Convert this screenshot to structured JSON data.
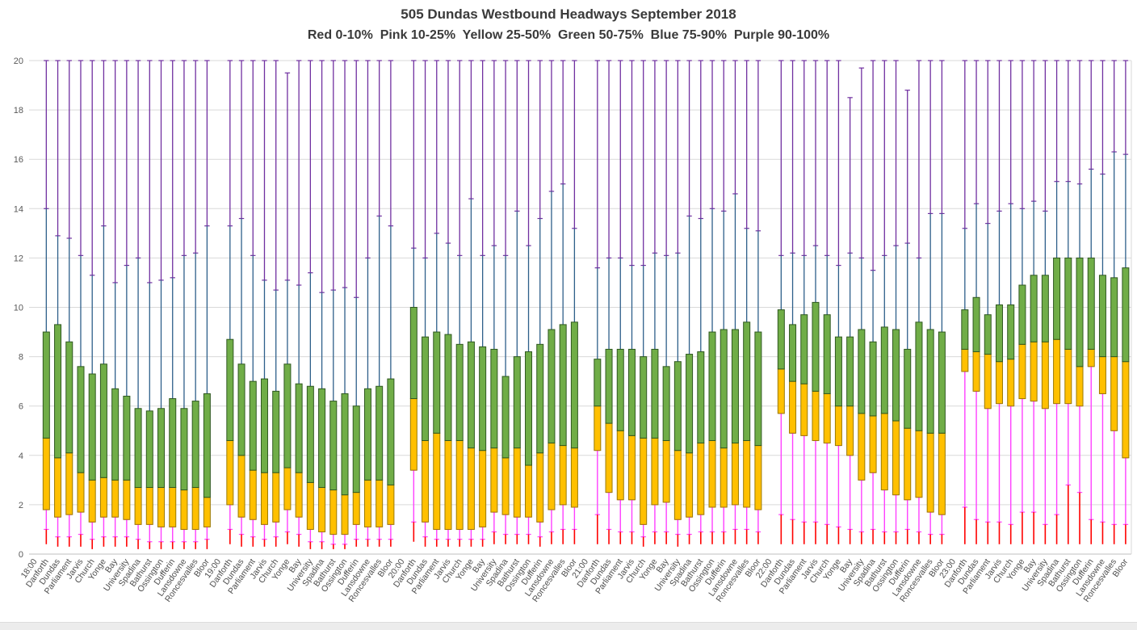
{
  "chart_data": {
    "type": "box-percentile",
    "title": "505 Dundas Westbound Headways September 2018",
    "subtitle": "Red 0-10%  Pink 10-25%  Yellow 25-50%  Green 50-75%  Blue 75-90%  Purple 90-100%",
    "xlabel": "",
    "ylabel": "",
    "ylim": [
      0,
      20
    ],
    "ytick_step": 2,
    "grid": true,
    "legend_position": "subtitle-text",
    "percentile_levels": [
      "p0",
      "p10",
      "p25",
      "p50",
      "p75",
      "p90",
      "p100"
    ],
    "segment_colors": {
      "red": "#FF0000",
      "pink": "#FF40FF",
      "yellow": "#FFC000",
      "yellow_border": "#9C7A00",
      "green": "#70AD47",
      "green_border": "#2F5820",
      "blue": "#2E5F8A",
      "purple": "#7030A0"
    },
    "axis_colors": {
      "gridline": "#D9D9D9",
      "axis_line": "#BFBFBF",
      "tick_label": "#595959",
      "x_label": "#4D4D4D"
    },
    "stations": [
      "Danforth",
      "Dundas",
      "Parliament",
      "Jarvis",
      "Church",
      "Yonge",
      "Bay",
      "University",
      "Spadina",
      "Bathurst",
      "Ossington",
      "Dufferin",
      "Lansdowne",
      "Roncesvalles",
      "Bloor"
    ],
    "groups": [
      {
        "hour": "18:00",
        "bars": [
          [
            0.4,
            1.0,
            1.8,
            4.7,
            9.0,
            14.0,
            20
          ],
          [
            0.3,
            0.7,
            1.5,
            3.9,
            9.3,
            12.9,
            20
          ],
          [
            0.3,
            0.7,
            1.6,
            4.1,
            8.6,
            12.8,
            20
          ],
          [
            0.3,
            0.8,
            1.7,
            3.3,
            7.6,
            12.1,
            20
          ],
          [
            0.2,
            0.6,
            1.3,
            3.0,
            7.3,
            11.3,
            20
          ],
          [
            0.3,
            0.7,
            1.5,
            3.1,
            7.7,
            13.3,
            20
          ],
          [
            0.3,
            0.7,
            1.5,
            3.0,
            6.7,
            11.0,
            20
          ],
          [
            0.3,
            0.7,
            1.4,
            3.0,
            6.4,
            11.7,
            20
          ],
          [
            0.2,
            0.6,
            1.2,
            2.7,
            5.9,
            12.0,
            20
          ],
          [
            0.2,
            0.5,
            1.2,
            2.7,
            5.8,
            11.0,
            20
          ],
          [
            0.2,
            0.5,
            1.1,
            2.7,
            5.9,
            11.1,
            20
          ],
          [
            0.2,
            0.5,
            1.1,
            2.7,
            6.3,
            11.2,
            20
          ],
          [
            0.2,
            0.5,
            1.0,
            2.6,
            5.9,
            12.1,
            20
          ],
          [
            0.2,
            0.5,
            1.0,
            2.7,
            6.2,
            12.2,
            20
          ],
          [
            0.2,
            0.6,
            1.1,
            2.3,
            6.5,
            13.3,
            20
          ]
        ]
      },
      {
        "hour": "19:00",
        "bars": [
          [
            0.4,
            1.0,
            2.0,
            4.6,
            8.7,
            13.3,
            20
          ],
          [
            0.3,
            0.8,
            1.5,
            4.0,
            7.7,
            13.6,
            20
          ],
          [
            0.3,
            0.7,
            1.4,
            3.4,
            7.0,
            12.1,
            20
          ],
          [
            0.3,
            0.6,
            1.2,
            3.3,
            7.1,
            11.1,
            20
          ],
          [
            0.3,
            0.7,
            1.3,
            3.3,
            6.6,
            10.7,
            20
          ],
          [
            0.4,
            0.9,
            1.8,
            3.5,
            7.7,
            11.1,
            19.5
          ],
          [
            0.3,
            0.8,
            1.5,
            3.3,
            6.9,
            10.9,
            20
          ],
          [
            0.2,
            0.5,
            1.0,
            2.9,
            6.8,
            11.4,
            20
          ],
          [
            0.2,
            0.5,
            0.9,
            2.7,
            6.7,
            10.6,
            20
          ],
          [
            0.2,
            0.4,
            0.8,
            2.6,
            6.2,
            10.7,
            20
          ],
          [
            0.2,
            0.4,
            0.8,
            2.4,
            6.5,
            10.8,
            20
          ],
          [
            0.3,
            0.6,
            1.2,
            2.5,
            6.0,
            10.4,
            20
          ],
          [
            0.3,
            0.6,
            1.1,
            3.0,
            6.7,
            12.0,
            20
          ],
          [
            0.3,
            0.6,
            1.1,
            3.0,
            6.8,
            13.7,
            20
          ],
          [
            0.3,
            0.6,
            1.2,
            2.8,
            7.1,
            13.3,
            20
          ]
        ]
      },
      {
        "hour": "20:00",
        "bars": [
          [
            0.5,
            1.3,
            3.4,
            6.3,
            10.0,
            12.4,
            20
          ],
          [
            0.3,
            0.7,
            1.3,
            4.6,
            8.8,
            12.0,
            20
          ],
          [
            0.3,
            0.6,
            1.0,
            4.9,
            9.0,
            13.0,
            20
          ],
          [
            0.3,
            0.6,
            1.0,
            4.6,
            8.9,
            12.6,
            20
          ],
          [
            0.3,
            0.6,
            1.0,
            4.6,
            8.5,
            12.1,
            20
          ],
          [
            0.3,
            0.6,
            1.0,
            4.3,
            8.6,
            14.4,
            20
          ],
          [
            0.3,
            0.6,
            1.1,
            4.2,
            8.4,
            12.1,
            20
          ],
          [
            0.4,
            0.9,
            1.7,
            4.3,
            8.3,
            12.5,
            20
          ],
          [
            0.4,
            0.8,
            1.6,
            3.9,
            7.2,
            12.1,
            20
          ],
          [
            0.4,
            0.8,
            1.5,
            4.3,
            8.0,
            13.9,
            20
          ],
          [
            0.4,
            0.8,
            1.5,
            3.6,
            8.2,
            12.5,
            20
          ],
          [
            0.3,
            0.7,
            1.3,
            4.1,
            8.5,
            13.6,
            20
          ],
          [
            0.4,
            0.9,
            1.8,
            4.5,
            9.1,
            14.7,
            20
          ],
          [
            0.4,
            1.0,
            2.0,
            4.4,
            9.3,
            15.0,
            20
          ],
          [
            0.4,
            1.0,
            1.9,
            4.3,
            9.4,
            13.2,
            20
          ]
        ]
      },
      {
        "hour": "21:00",
        "bars": [
          [
            0.4,
            1.6,
            4.2,
            6.0,
            7.9,
            11.6,
            20
          ],
          [
            0.4,
            1.0,
            2.5,
            5.3,
            8.3,
            12.0,
            20
          ],
          [
            0.4,
            0.9,
            2.2,
            5.0,
            8.3,
            12.0,
            20
          ],
          [
            0.4,
            0.9,
            2.2,
            4.8,
            8.3,
            11.7,
            20
          ],
          [
            0.3,
            0.7,
            1.2,
            4.7,
            8.0,
            11.7,
            20
          ],
          [
            0.4,
            0.9,
            2.0,
            4.7,
            8.3,
            12.2,
            20
          ],
          [
            0.4,
            0.9,
            2.1,
            4.6,
            7.6,
            12.1,
            20
          ],
          [
            0.3,
            0.8,
            1.4,
            4.2,
            7.8,
            12.2,
            20
          ],
          [
            0.4,
            0.8,
            1.5,
            4.1,
            8.1,
            13.7,
            20
          ],
          [
            0.4,
            0.9,
            1.6,
            4.5,
            8.2,
            13.6,
            20
          ],
          [
            0.4,
            0.9,
            1.9,
            4.6,
            9.0,
            14.0,
            20
          ],
          [
            0.4,
            0.9,
            1.9,
            4.3,
            9.1,
            13.9,
            20
          ],
          [
            0.4,
            1.0,
            2.0,
            4.5,
            9.1,
            14.6,
            20
          ],
          [
            0.4,
            1.0,
            1.9,
            4.6,
            9.4,
            13.2,
            20
          ],
          [
            0.4,
            0.9,
            1.8,
            4.4,
            9.0,
            13.1,
            20
          ]
        ]
      },
      {
        "hour": "22:00",
        "bars": [
          [
            0.4,
            1.6,
            5.7,
            7.5,
            9.9,
            12.1,
            20
          ],
          [
            0.4,
            1.4,
            4.9,
            7.0,
            9.3,
            12.2,
            20
          ],
          [
            0.4,
            1.3,
            4.8,
            6.9,
            9.7,
            12.1,
            20
          ],
          [
            0.4,
            1.3,
            4.6,
            6.6,
            10.2,
            12.5,
            20
          ],
          [
            0.4,
            1.2,
            4.5,
            6.5,
            9.7,
            12.1,
            20
          ],
          [
            0.4,
            1.1,
            4.4,
            6.0,
            8.8,
            11.7,
            20
          ],
          [
            0.4,
            1.0,
            4.0,
            6.0,
            8.8,
            12.2,
            18.5
          ],
          [
            0.4,
            0.9,
            3.0,
            5.7,
            9.1,
            12.0,
            19.7
          ],
          [
            0.4,
            1.0,
            3.3,
            5.6,
            8.6,
            11.5,
            20
          ],
          [
            0.4,
            0.9,
            2.6,
            5.7,
            9.2,
            12.1,
            20
          ],
          [
            0.4,
            0.9,
            2.4,
            5.4,
            9.1,
            12.5,
            20
          ],
          [
            0.4,
            1.0,
            2.2,
            5.1,
            8.3,
            12.6,
            18.8
          ],
          [
            0.4,
            0.9,
            2.3,
            5.0,
            9.4,
            12.0,
            20
          ],
          [
            0.4,
            0.8,
            1.7,
            4.9,
            9.1,
            13.8,
            20
          ],
          [
            0.4,
            0.8,
            1.6,
            4.9,
            9.0,
            13.8,
            20
          ]
        ]
      },
      {
        "hour": "23:00",
        "bars": [
          [
            0.4,
            1.9,
            7.4,
            8.3,
            9.9,
            13.2,
            20
          ],
          [
            0.4,
            1.4,
            6.6,
            8.2,
            10.4,
            14.2,
            20
          ],
          [
            0.4,
            1.3,
            5.9,
            8.1,
            9.7,
            13.4,
            20
          ],
          [
            0.4,
            1.3,
            6.1,
            7.8,
            10.1,
            13.9,
            20
          ],
          [
            0.4,
            1.2,
            6.0,
            7.9,
            10.1,
            14.2,
            20
          ],
          [
            0.4,
            1.7,
            6.3,
            8.5,
            10.9,
            14.0,
            20
          ],
          [
            0.4,
            1.7,
            6.2,
            8.6,
            11.3,
            14.3,
            20
          ],
          [
            0.4,
            1.2,
            5.9,
            8.6,
            11.3,
            13.9,
            20
          ],
          [
            0.4,
            1.6,
            6.1,
            8.7,
            12.0,
            15.1,
            20
          ],
          [
            0.4,
            2.8,
            6.1,
            8.3,
            12.0,
            15.1,
            20
          ],
          [
            0.4,
            2.5,
            6.0,
            7.6,
            12.0,
            15.0,
            20
          ],
          [
            0.4,
            1.4,
            7.6,
            8.3,
            12.0,
            15.6,
            20
          ],
          [
            0.4,
            1.3,
            6.5,
            8.0,
            11.3,
            15.4,
            20
          ],
          [
            0.4,
            1.2,
            5.0,
            8.0,
            11.2,
            16.3,
            20
          ],
          [
            0.4,
            1.2,
            3.9,
            7.8,
            11.6,
            16.2,
            20
          ]
        ]
      }
    ],
    "y_ticks": [
      0,
      2,
      4,
      6,
      8,
      10,
      12,
      14,
      16,
      18,
      20
    ]
  }
}
